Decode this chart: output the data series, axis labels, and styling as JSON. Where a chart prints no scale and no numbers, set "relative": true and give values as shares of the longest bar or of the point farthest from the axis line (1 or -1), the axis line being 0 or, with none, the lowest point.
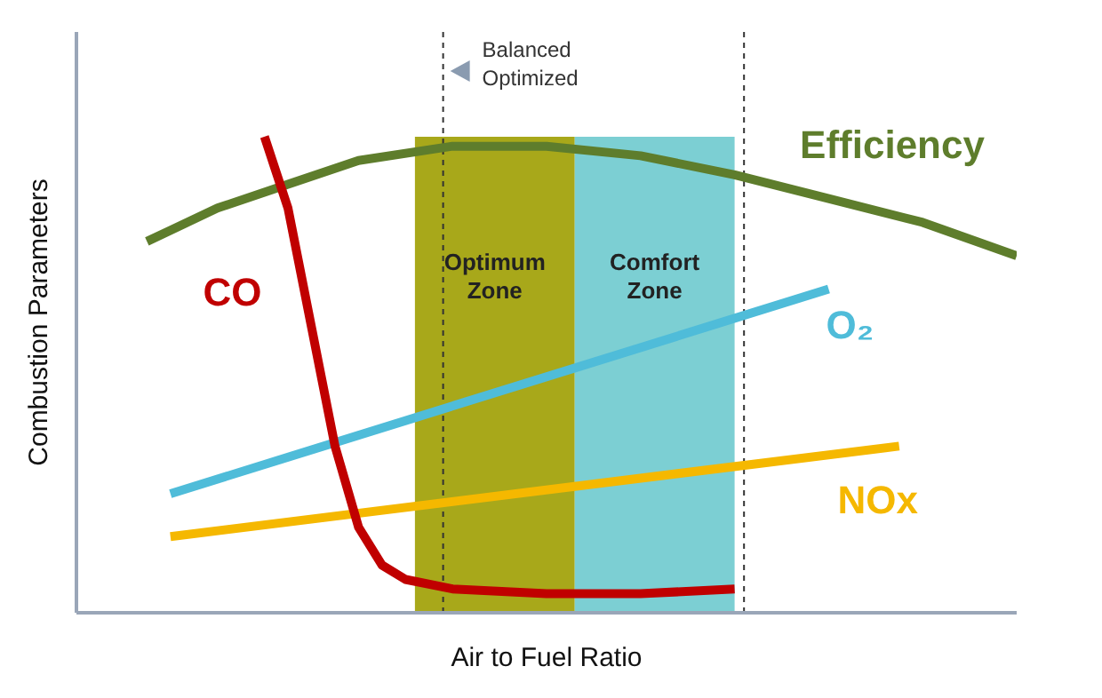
{
  "chart_data": {
    "type": "line",
    "relative": true,
    "xlabel": "Air to Fuel Ratio",
    "ylabel": "Combustion Parameters",
    "marker": "none",
    "categories": [
      null,
      null,
      null,
      null,
      null,
      null,
      null,
      null,
      null,
      null,
      null,
      null,
      null,
      null,
      null,
      null,
      null,
      null,
      null,
      null,
      null,
      null,
      null,
      null,
      null,
      null,
      null,
      null,
      null,
      null,
      null,
      null,
      null,
      null,
      null,
      null,
      null,
      null,
      null,
      null,
      null
    ],
    "series": [
      {
        "name": "Efficiency",
        "color": "#5e7d2c",
        "values": [
          null,
          null,
          null,
          0.78,
          null,
          null,
          0.85,
          null,
          null,
          0.9,
          null,
          null,
          0.95,
          null,
          null,
          null,
          0.98,
          null,
          null,
          null,
          0.98,
          null,
          null,
          null,
          0.96,
          null,
          null,
          null,
          0.92,
          null,
          null,
          null,
          0.87,
          null,
          null,
          null,
          0.82,
          null,
          null,
          null,
          0.75
        ]
      },
      {
        "name": "O₂",
        "color": "#4fbcd9",
        "values": [
          null,
          null,
          null,
          null,
          0.25,
          null,
          null,
          null,
          null,
          null,
          null,
          null,
          null,
          null,
          null,
          null,
          null,
          null,
          null,
          null,
          null,
          null,
          null,
          null,
          null,
          null,
          null,
          null,
          null,
          null,
          null,
          null,
          0.68,
          null,
          null,
          null,
          null,
          null,
          null,
          null,
          null
        ]
      },
      {
        "name": "NOx",
        "color": "#f5b800",
        "values": [
          null,
          null,
          null,
          null,
          0.16,
          null,
          null,
          null,
          null,
          null,
          null,
          null,
          null,
          null,
          null,
          null,
          null,
          null,
          null,
          null,
          null,
          null,
          null,
          null,
          null,
          null,
          null,
          null,
          null,
          null,
          null,
          null,
          null,
          null,
          null,
          0.35,
          null,
          null,
          null,
          null,
          null
        ]
      },
      {
        "name": "CO",
        "color": "#c00000",
        "values": [
          null,
          null,
          null,
          null,
          null,
          null,
          null,
          null,
          1,
          0.85,
          0.6,
          0.35,
          0.18,
          0.1,
          0.07,
          null,
          0.05,
          null,
          null,
          null,
          0.04,
          null,
          null,
          null,
          0.04,
          null,
          null,
          null,
          0.05,
          null,
          null,
          null,
          null,
          null,
          null,
          null,
          null,
          null,
          null,
          null,
          null
        ]
      }
    ],
    "annotations": [
      "Optimum Zone",
      "Comfort Zone",
      "Balanced Optimized"
    ]
  }
}
